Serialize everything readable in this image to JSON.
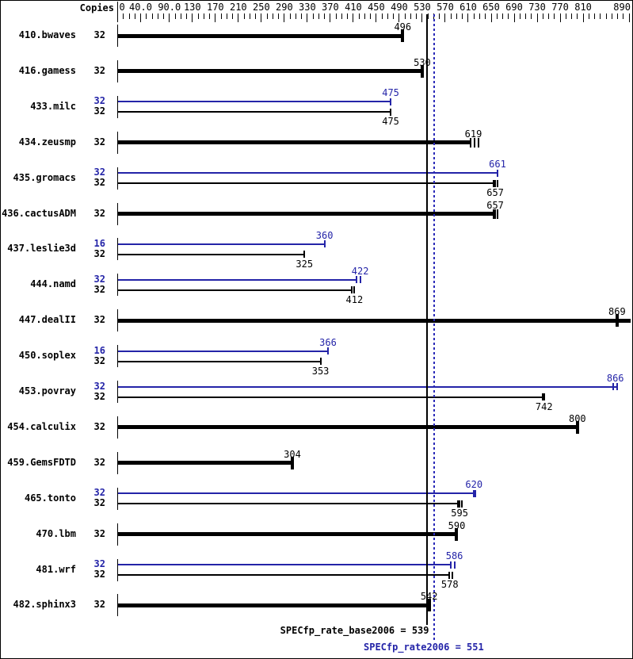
{
  "header": {
    "copies_label": "Copies"
  },
  "colors": {
    "base": "#000000",
    "peak": "#2424a8",
    "peak_line": "#2a2ab8",
    "background": "#ffffff"
  },
  "chart_data": {
    "type": "bar",
    "orientation": "horizontal",
    "xlabel": "",
    "ylabel": "Copies",
    "xlim": [
      0,
      895
    ],
    "x_axis_ticks": [
      {
        "value": 0,
        "label": "0"
      },
      {
        "value": 40,
        "label": "40.0"
      },
      {
        "value": 90,
        "label": "90.0"
      },
      {
        "value": 130,
        "label": "130"
      },
      {
        "value": 170,
        "label": "170"
      },
      {
        "value": 210,
        "label": "210"
      },
      {
        "value": 250,
        "label": "250"
      },
      {
        "value": 290,
        "label": "290"
      },
      {
        "value": 330,
        "label": "330"
      },
      {
        "value": 370,
        "label": "370"
      },
      {
        "value": 410,
        "label": "410"
      },
      {
        "value": 450,
        "label": "450"
      },
      {
        "value": 490,
        "label": "490"
      },
      {
        "value": 530,
        "label": "530"
      },
      {
        "value": 570,
        "label": "570"
      },
      {
        "value": 610,
        "label": "610"
      },
      {
        "value": 650,
        "label": "650"
      },
      {
        "value": 690,
        "label": "690"
      },
      {
        "value": 730,
        "label": "730"
      },
      {
        "value": 770,
        "label": "770"
      },
      {
        "value": 810,
        "label": "810"
      },
      {
        "value": 890,
        "label": "890"
      }
    ],
    "minor_tick_step": 10,
    "benchmarks": [
      {
        "name": "410.bwaves",
        "bars": [
          {
            "series": "base",
            "copies": "32",
            "value": 496,
            "bar_to": 496,
            "run_ticks": [
              496
            ]
          }
        ]
      },
      {
        "name": "416.gamess",
        "bars": [
          {
            "series": "base",
            "copies": "32",
            "value": 530,
            "bar_to": 530,
            "run_ticks": [
              530
            ]
          }
        ]
      },
      {
        "name": "433.milc",
        "bars": [
          {
            "series": "peak",
            "copies": "32",
            "value": 475,
            "bar_to": 475,
            "run_ticks": [
              475
            ]
          },
          {
            "series": "base",
            "copies": "32",
            "value": 475,
            "bar_to": 475,
            "run_ticks": [
              475
            ]
          }
        ]
      },
      {
        "name": "434.zeusmp",
        "bars": [
          {
            "series": "base",
            "copies": "32",
            "value": 619,
            "bar_to": 614,
            "run_ticks": [
              614,
              621,
              628
            ]
          }
        ]
      },
      {
        "name": "435.gromacs",
        "bars": [
          {
            "series": "peak",
            "copies": "32",
            "value": 661,
            "bar_to": 661,
            "run_ticks": [
              661
            ]
          },
          {
            "series": "base",
            "copies": "32",
            "value": 657,
            "bar_to": 654,
            "run_ticks": [
              654,
              657,
              661
            ]
          }
        ]
      },
      {
        "name": "436.cactusADM",
        "bars": [
          {
            "series": "base",
            "copies": "32",
            "value": 657,
            "bar_to": 654,
            "run_ticks": [
              654,
              657,
              661
            ]
          }
        ]
      },
      {
        "name": "437.leslie3d",
        "bars": [
          {
            "series": "peak",
            "copies": "16",
            "value": 360,
            "bar_to": 360,
            "run_ticks": [
              360
            ]
          },
          {
            "series": "base",
            "copies": "32",
            "value": 325,
            "bar_to": 325,
            "run_ticks": [
              325
            ]
          }
        ]
      },
      {
        "name": "444.namd",
        "bars": [
          {
            "series": "peak",
            "copies": "32",
            "value": 422,
            "bar_to": 415,
            "run_ticks": [
              415,
              422
            ]
          },
          {
            "series": "base",
            "copies": "32",
            "value": 412,
            "bar_to": 408,
            "run_ticks": [
              408,
              412
            ]
          }
        ]
      },
      {
        "name": "447.dealII",
        "bars": [
          {
            "series": "base",
            "copies": "32",
            "value": 869,
            "bar_to": 892,
            "run_ticks": [
              869
            ]
          }
        ]
      },
      {
        "name": "450.soplex",
        "bars": [
          {
            "series": "peak",
            "copies": "16",
            "value": 366,
            "bar_to": 366,
            "run_ticks": [
              366
            ]
          },
          {
            "series": "base",
            "copies": "32",
            "value": 353,
            "bar_to": 353,
            "run_ticks": [
              353
            ]
          }
        ]
      },
      {
        "name": "453.povray",
        "bars": [
          {
            "series": "peak",
            "copies": "32",
            "value": 866,
            "bar_to": 869,
            "run_ticks": [
              862,
              869
            ]
          },
          {
            "series": "base",
            "copies": "32",
            "value": 742,
            "bar_to": 741,
            "run_ticks": [
              739,
              743
            ]
          }
        ]
      },
      {
        "name": "454.calculix",
        "bars": [
          {
            "series": "base",
            "copies": "32",
            "value": 800,
            "bar_to": 800,
            "run_ticks": [
              800
            ]
          }
        ]
      },
      {
        "name": "459.GemsFDTD",
        "bars": [
          {
            "series": "base",
            "copies": "32",
            "value": 304,
            "bar_to": 304,
            "run_ticks": [
              304
            ]
          }
        ]
      },
      {
        "name": "465.tonto",
        "bars": [
          {
            "series": "peak",
            "copies": "32",
            "value": 620,
            "bar_to": 619,
            "run_ticks": [
              619,
              623
            ]
          },
          {
            "series": "base",
            "copies": "32",
            "value": 595,
            "bar_to": 592,
            "run_ticks": [
              592,
              595,
              599
            ]
          }
        ]
      },
      {
        "name": "470.lbm",
        "bars": [
          {
            "series": "base",
            "copies": "32",
            "value": 590,
            "bar_to": 590,
            "run_ticks": [
              590
            ]
          }
        ]
      },
      {
        "name": "481.wrf",
        "bars": [
          {
            "series": "peak",
            "copies": "32",
            "value": 586,
            "bar_to": 580,
            "run_ticks": [
              580,
              586
            ]
          },
          {
            "series": "base",
            "copies": "32",
            "value": 578,
            "bar_to": 577,
            "run_ticks": [
              577,
              583
            ]
          }
        ]
      },
      {
        "name": "482.sphinx3",
        "bars": [
          {
            "series": "base",
            "copies": "32",
            "value": 542,
            "bar_to": 542,
            "run_ticks": [
              542
            ]
          }
        ]
      }
    ],
    "reference_lines": [
      {
        "series": "base",
        "value": 539,
        "style": "solid"
      },
      {
        "series": "peak",
        "value": 551,
        "style": "dotted"
      }
    ],
    "summary": {
      "base_text": "SPECfp_rate_base2006 = 539",
      "peak_text": "SPECfp_rate2006 = 551"
    }
  }
}
